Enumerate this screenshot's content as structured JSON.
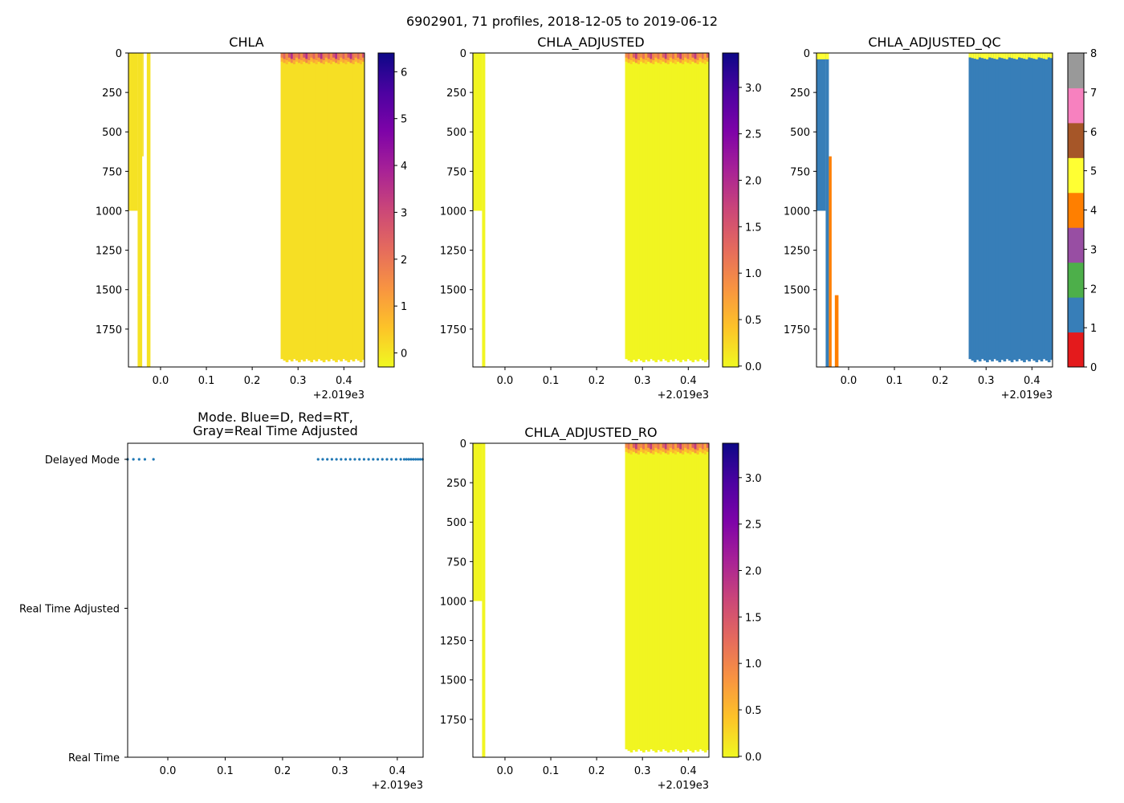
{
  "figure": {
    "suptitle": "6902901, 71 profiles, 2018-12-05 to 2019-06-12"
  },
  "colors": {
    "plasma_r": [
      "#f0f921",
      "#fdc328",
      "#f89441",
      "#e56b5d",
      "#cb4778",
      "#a82296",
      "#7e03a8",
      "#4c02a1",
      "#0d0887"
    ],
    "qc": [
      "#e41a1c",
      "#377eb8",
      "#4daf4a",
      "#984ea3",
      "#ff7f00",
      "#ffff33",
      "#a65628",
      "#f781bf",
      "#999999"
    ],
    "mode_dot": "#1f77b4",
    "axis": "#000000"
  },
  "chart_data": [
    {
      "id": "chla",
      "type": "heatmap",
      "title": "CHLA",
      "xlim": [
        -0.07,
        0.445
      ],
      "xticks": [
        "-0.07 hidden"
      ],
      "xtick_values": [
        0.0,
        0.1,
        0.2,
        0.3,
        0.4
      ],
      "xtick_labels": [
        "0.0",
        "0.1",
        "0.2",
        "0.3",
        "0.4"
      ],
      "x_offset_label": "+2.019e3",
      "ylim": [
        1990,
        0
      ],
      "ytick_values": [
        0,
        250,
        500,
        750,
        1000,
        1250,
        1500,
        1750
      ],
      "ytick_labels": [
        "0",
        "250",
        "500",
        "750",
        "1000",
        "1250",
        "1500",
        "1750"
      ],
      "colorbar": {
        "cmap": "plasma_r",
        "range": [
          -0.3,
          6.4
        ],
        "tick_values": [
          0,
          1,
          2,
          3,
          4,
          5,
          6
        ],
        "tick_labels": [
          "0",
          "1",
          "2",
          "3",
          "4",
          "5",
          "6"
        ]
      },
      "profiles": [
        {
          "x0": -0.07,
          "x1": -0.05,
          "depth": 1000,
          "value": 0.05
        },
        {
          "x0": -0.05,
          "x1": -0.04,
          "depth": 1990,
          "value": 0.05
        },
        {
          "x0": -0.04,
          "x1": -0.037,
          "depth": 655,
          "value": 0.05
        },
        {
          "x0": -0.03,
          "x1": -0.022,
          "depth": 1535,
          "value": 0.05
        },
        {
          "x0": -0.03,
          "x1": -0.022,
          "depth": 1990,
          "value": 0.05,
          "start": 1535
        }
      ],
      "block": {
        "x0": 0.262,
        "x1": 0.445,
        "depth_min": 1940,
        "depth_max": 1960,
        "value": 0.1,
        "surface_values": [
          1.8,
          2.4,
          1.5,
          2.8,
          3.6,
          2.0
        ]
      }
    },
    {
      "id": "chla_adjusted",
      "type": "heatmap",
      "title": "CHLA_ADJUSTED",
      "xlim": [
        -0.07,
        0.445
      ],
      "xtick_values": [
        0.0,
        0.1,
        0.2,
        0.3,
        0.4
      ],
      "xtick_labels": [
        "0.0",
        "0.1",
        "0.2",
        "0.3",
        "0.4"
      ],
      "x_offset_label": "+2.019e3",
      "ylim": [
        1990,
        0
      ],
      "ytick_values": [
        0,
        250,
        500,
        750,
        1000,
        1250,
        1500,
        1750
      ],
      "ytick_labels": [
        "0",
        "250",
        "500",
        "750",
        "1000",
        "1250",
        "1500",
        "1750"
      ],
      "colorbar": {
        "cmap": "plasma_r",
        "range": [
          -0.01,
          3.37
        ],
        "tick_values": [
          0.0,
          0.5,
          1.0,
          1.5,
          2.0,
          2.5,
          3.0
        ],
        "tick_labels": [
          "0.0",
          "0.5",
          "1.0",
          "1.5",
          "2.0",
          "2.5",
          "3.0"
        ]
      },
      "profiles": [
        {
          "x0": -0.07,
          "x1": -0.05,
          "depth": 1000,
          "value": 0.02
        },
        {
          "x0": -0.05,
          "x1": -0.043,
          "depth": 1990,
          "value": 0.02
        }
      ],
      "block": {
        "x0": 0.262,
        "x1": 0.445,
        "depth_min": 1940,
        "depth_max": 1960,
        "value": 0.02,
        "surface_values": [
          0.9,
          1.2,
          0.7,
          1.4,
          1.8,
          1.0
        ]
      }
    },
    {
      "id": "chla_adjusted_qc",
      "type": "heatmap",
      "title": "CHLA_ADJUSTED_QC",
      "xlim": [
        -0.07,
        0.445
      ],
      "xtick_values": [
        0.0,
        0.1,
        0.2,
        0.3,
        0.4
      ],
      "xtick_labels": [
        "0.0",
        "0.1",
        "0.2",
        "0.3",
        "0.4"
      ],
      "x_offset_label": "+2.019e3",
      "ylim": [
        1990,
        0
      ],
      "ytick_values": [
        0,
        250,
        500,
        750,
        1000,
        1250,
        1500,
        1750
      ],
      "ytick_labels": [
        "0",
        "250",
        "500",
        "750",
        "1000",
        "1250",
        "1500",
        "1750"
      ],
      "colorbar": {
        "cmap": "qc",
        "range": [
          0,
          8
        ],
        "discrete": true,
        "tick_values": [
          0,
          1,
          2,
          3,
          4,
          5,
          6,
          7,
          8
        ],
        "tick_labels": [
          "0",
          "1",
          "2",
          "3",
          "4",
          "5",
          "6",
          "7",
          "8"
        ]
      },
      "profiles": [
        {
          "x0": -0.07,
          "x1": -0.05,
          "depth": 1000,
          "qc": 1,
          "surface_qc": 5
        },
        {
          "x0": -0.05,
          "x1": -0.043,
          "depth": 1990,
          "qc": 1,
          "surface_qc": 5
        },
        {
          "x0": -0.043,
          "x1": -0.037,
          "depth": 1990,
          "qc": 4,
          "start": 655
        },
        {
          "x0": -0.03,
          "x1": -0.022,
          "depth": 1990,
          "qc": 4,
          "start": 1535
        }
      ],
      "block": {
        "x0": 0.262,
        "x1": 0.445,
        "depth_min": 1940,
        "depth_max": 1960,
        "qc": 1,
        "surface_qc": 5
      }
    },
    {
      "id": "mode",
      "type": "scatter",
      "title": "Mode. Blue=D, Red=RT,\nGray=Real Time Adjusted",
      "title_lines": [
        "Mode. Blue=D, Red=RT,",
        "Gray=Real Time Adjusted"
      ],
      "xlim": [
        -0.07,
        0.445
      ],
      "xtick_values": [
        0.0,
        0.1,
        0.2,
        0.3,
        0.4
      ],
      "xtick_labels": [
        "0.0",
        "0.1",
        "0.2",
        "0.3",
        "0.4"
      ],
      "x_offset_label": "+2.019e3",
      "ycategories": [
        "Delayed Mode",
        "Real Time Adjusted",
        "Real Time"
      ],
      "points_x": [
        -0.07,
        -0.06,
        -0.05,
        -0.04,
        -0.025,
        0.262,
        0.27,
        0.278,
        0.286,
        0.294,
        0.302,
        0.31,
        0.318,
        0.326,
        0.334,
        0.342,
        0.35,
        0.358,
        0.366,
        0.374,
        0.382,
        0.39,
        0.398,
        0.406,
        0.412,
        0.416,
        0.42,
        0.424,
        0.428,
        0.432,
        0.436,
        0.44,
        0.444
      ],
      "points_category": "Delayed Mode"
    },
    {
      "id": "chla_adjusted_ro",
      "type": "heatmap",
      "title": "CHLA_ADJUSTED_RO",
      "xlim": [
        -0.07,
        0.445
      ],
      "xtick_values": [
        0.0,
        0.1,
        0.2,
        0.3,
        0.4
      ],
      "xtick_labels": [
        "0.0",
        "0.1",
        "0.2",
        "0.3",
        "0.4"
      ],
      "x_offset_label": "+2.019e3",
      "ylim": [
        1990,
        0
      ],
      "ytick_values": [
        0,
        250,
        500,
        750,
        1000,
        1250,
        1500,
        1750
      ],
      "ytick_labels": [
        "0",
        "250",
        "500",
        "750",
        "1000",
        "1250",
        "1500",
        "1750"
      ],
      "colorbar": {
        "cmap": "plasma_r",
        "range": [
          -0.01,
          3.37
        ],
        "tick_values": [
          0.0,
          0.5,
          1.0,
          1.5,
          2.0,
          2.5,
          3.0
        ],
        "tick_labels": [
          "0.0",
          "0.5",
          "1.0",
          "1.5",
          "2.0",
          "2.5",
          "3.0"
        ]
      },
      "profiles": [
        {
          "x0": -0.07,
          "x1": -0.05,
          "depth": 1000,
          "value": 0.02
        },
        {
          "x0": -0.05,
          "x1": -0.043,
          "depth": 1990,
          "value": 0.02
        }
      ],
      "block": {
        "x0": 0.262,
        "x1": 0.445,
        "depth_min": 1940,
        "depth_max": 1960,
        "value": 0.02,
        "surface_values": [
          0.9,
          1.2,
          0.7,
          1.4,
          1.8,
          1.0
        ]
      }
    }
  ]
}
